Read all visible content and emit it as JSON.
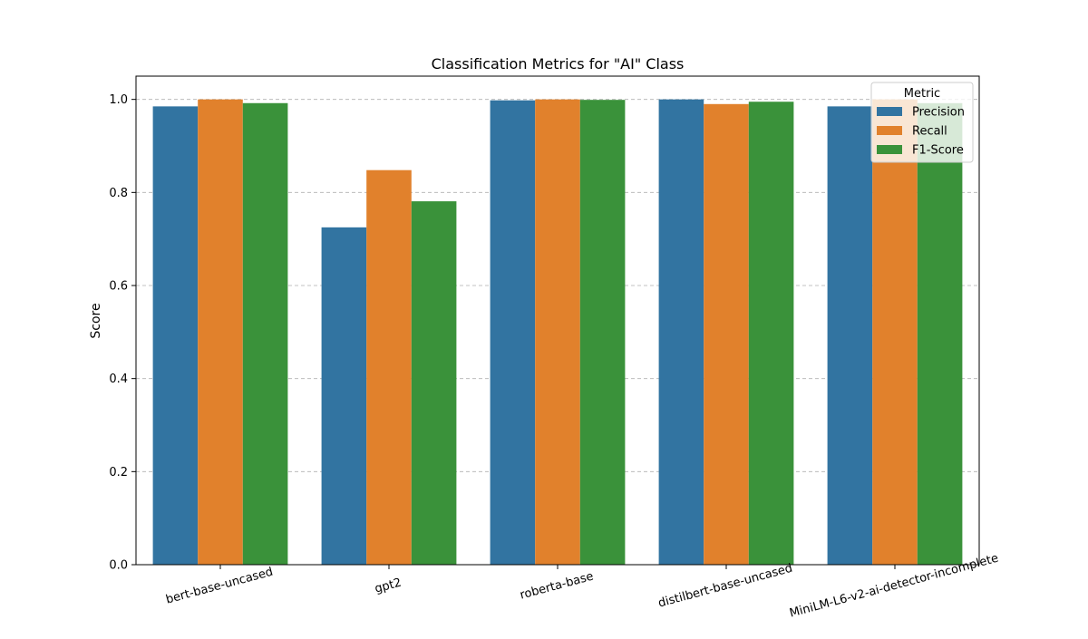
{
  "chart_data": {
    "type": "bar",
    "title": "Classification Metrics for \"AI\" Class",
    "xlabel": "",
    "ylabel": "Score",
    "ylim": [
      0,
      1.05
    ],
    "yticks": [
      0.0,
      0.2,
      0.4,
      0.6,
      0.8,
      1.0
    ],
    "ytick_labels": [
      "0.0",
      "0.2",
      "0.4",
      "0.6",
      "0.8",
      "1.0"
    ],
    "grid": "y-dashed",
    "categories": [
      "bert-base-uncased",
      "gpt2",
      "roberta-base",
      "distilbert-base-uncased",
      "MiniLM-L6-v2-ai-detector-incomplete"
    ],
    "series": [
      {
        "name": "Precision",
        "color": "#3274a1",
        "values": [
          0.985,
          0.725,
          0.998,
          1.0,
          0.985
        ]
      },
      {
        "name": "Recall",
        "color": "#e1812c",
        "values": [
          1.0,
          0.848,
          1.0,
          0.99,
          1.0
        ]
      },
      {
        "name": "F1-Score",
        "color": "#3a923a",
        "values": [
          0.992,
          0.781,
          0.999,
          0.995,
          0.992
        ]
      }
    ],
    "legend": {
      "title": "Metric",
      "placement": "top-right"
    }
  }
}
